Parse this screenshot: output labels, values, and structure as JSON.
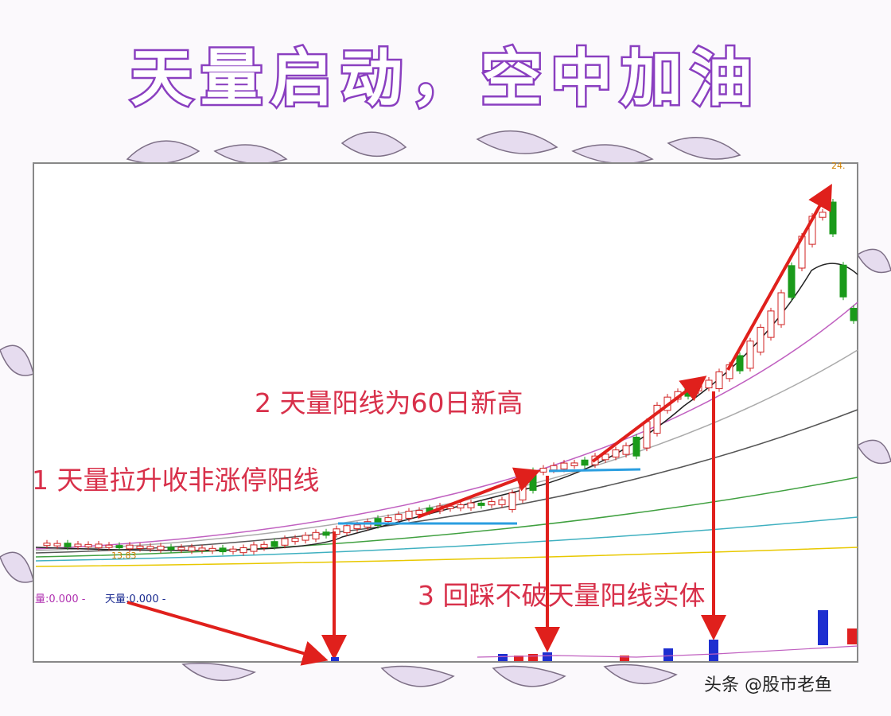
{
  "title": "天量启动，空中加油",
  "chart": {
    "annotations": [
      "1 天量拉升收非涨停阳线",
      "2 天量阳线为60日新高",
      "3 回踩不破天量阳线实体"
    ],
    "indicator": {
      "volume": "量:0.000 -",
      "peak_volume": "天量:0.000 -"
    },
    "price_labels": [
      "24.",
      "13.83"
    ]
  },
  "watermark": "头条 @股市老鱼"
}
